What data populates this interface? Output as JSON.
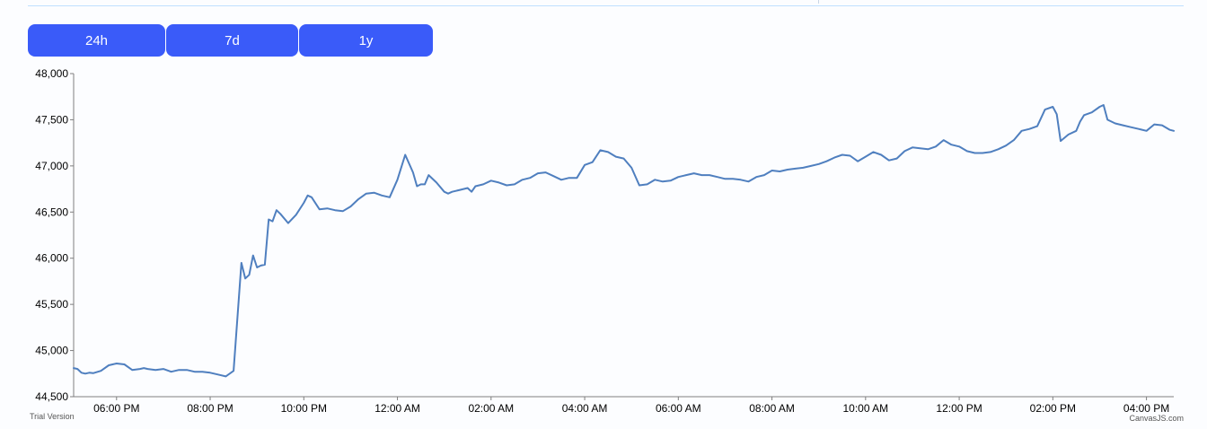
{
  "range_buttons": [
    {
      "label": "24h"
    },
    {
      "label": "7d"
    },
    {
      "label": "1y"
    }
  ],
  "footer": {
    "trial": "Trial Version",
    "brand": "CanvasJS.com"
  },
  "colors": {
    "line": "#4f7fbf",
    "button": "#3a5bf9",
    "axis": "#7f7f7f"
  },
  "chart_data": {
    "type": "line",
    "title": "",
    "xlabel": "",
    "ylabel": "",
    "ylim": [
      44500,
      48000
    ],
    "yticks": [
      44500,
      45000,
      45500,
      46000,
      46500,
      47000,
      47500,
      48000
    ],
    "ytick_labels": [
      "44,500",
      "45,000",
      "45,500",
      "46,000",
      "46,500",
      "47,000",
      "47,500",
      "48,000"
    ],
    "xlim": [
      "17:05",
      "16:35"
    ],
    "xticks": [
      "18:00",
      "20:00",
      "22:00",
      "00:00",
      "02:00",
      "04:00",
      "06:00",
      "08:00",
      "10:00",
      "12:00",
      "14:00",
      "16:00"
    ],
    "xtick_labels": [
      "06:00 PM",
      "08:00 PM",
      "10:00 PM",
      "12:00 AM",
      "02:00 AM",
      "04:00 AM",
      "06:00 AM",
      "08:00 AM",
      "10:00 AM",
      "12:00 PM",
      "02:00 PM",
      "04:00 PM"
    ],
    "grid": false,
    "series": [
      {
        "x": [
          "17:05",
          "17:10",
          "17:15",
          "17:20",
          "17:25",
          "17:30",
          "17:40",
          "17:50",
          "17:55",
          "18:00",
          "18:10",
          "18:20",
          "18:30",
          "18:35",
          "18:40",
          "18:50",
          "19:00",
          "19:10",
          "19:20",
          "19:30",
          "19:40",
          "19:50",
          "20:00",
          "20:10",
          "20:20",
          "20:30",
          "20:40",
          "20:45",
          "20:50",
          "20:55",
          "21:00",
          "21:05",
          "21:10",
          "21:15",
          "21:20",
          "21:25",
          "21:30",
          "21:40",
          "21:50",
          "22:00",
          "22:05",
          "22:10",
          "22:20",
          "22:30",
          "22:40",
          "22:50",
          "23:00",
          "23:10",
          "23:20",
          "23:30",
          "23:40",
          "23:50",
          "00:00",
          "00:10",
          "00:20",
          "00:25",
          "00:30",
          "00:35",
          "00:40",
          "00:50",
          "01:00",
          "01:05",
          "01:10",
          "01:20",
          "01:30",
          "01:35",
          "01:40",
          "01:50",
          "02:00",
          "02:10",
          "02:20",
          "02:30",
          "02:40",
          "02:50",
          "03:00",
          "03:10",
          "03:20",
          "03:30",
          "03:40",
          "03:50",
          "04:00",
          "04:10",
          "04:20",
          "04:30",
          "04:40",
          "04:50",
          "05:00",
          "05:10",
          "05:20",
          "05:30",
          "05:40",
          "05:50",
          "06:00",
          "06:10",
          "06:20",
          "06:30",
          "06:40",
          "06:50",
          "07:00",
          "07:10",
          "07:20",
          "07:30",
          "07:40",
          "07:50",
          "08:00",
          "08:10",
          "08:20",
          "08:30",
          "08:40",
          "08:50",
          "09:00",
          "09:10",
          "09:20",
          "09:30",
          "09:40",
          "09:50",
          "10:00",
          "10:10",
          "10:20",
          "10:30",
          "10:40",
          "10:50",
          "11:00",
          "11:10",
          "11:20",
          "11:30",
          "11:40",
          "11:50",
          "12:00",
          "12:10",
          "12:20",
          "12:30",
          "12:40",
          "12:50",
          "13:00",
          "13:10",
          "13:20",
          "13:30",
          "13:40",
          "13:50",
          "14:00",
          "14:05",
          "14:10",
          "14:20",
          "14:30",
          "14:35",
          "14:40",
          "14:50",
          "15:00",
          "15:05",
          "15:10",
          "15:20",
          "15:30",
          "15:40",
          "15:50",
          "16:00",
          "16:10",
          "16:20",
          "16:30",
          "16:35"
        ],
        "values": [
          44810,
          44800,
          44760,
          44750,
          44760,
          44755,
          44780,
          44840,
          44850,
          44860,
          44850,
          44790,
          44800,
          44810,
          44800,
          44790,
          44800,
          44770,
          44790,
          44790,
          44770,
          44770,
          44760,
          44740,
          44720,
          44780,
          45950,
          45780,
          45820,
          46030,
          45900,
          45920,
          45930,
          46420,
          46400,
          46520,
          46480,
          46380,
          46470,
          46600,
          46680,
          46660,
          46530,
          46540,
          46520,
          46510,
          46560,
          46640,
          46700,
          46710,
          46680,
          46660,
          46850,
          47120,
          46930,
          46780,
          46800,
          46800,
          46900,
          46820,
          46720,
          46700,
          46720,
          46740,
          46760,
          46720,
          46780,
          46800,
          46840,
          46820,
          46790,
          46800,
          46850,
          46870,
          46920,
          46930,
          46890,
          46850,
          46870,
          46870,
          47010,
          47040,
          47170,
          47150,
          47100,
          47080,
          46980,
          46790,
          46800,
          46850,
          46830,
          46840,
          46880,
          46900,
          46920,
          46900,
          46900,
          46880,
          46860,
          46860,
          46850,
          46830,
          46880,
          46900,
          46950,
          46940,
          46960,
          46970,
          46980,
          47000,
          47020,
          47050,
          47090,
          47120,
          47110,
          47050,
          47100,
          47150,
          47120,
          47060,
          47080,
          47160,
          47200,
          47190,
          47180,
          47210,
          47280,
          47230,
          47210,
          47160,
          47140,
          47140,
          47150,
          47180,
          47220,
          47280,
          47380,
          47400,
          47430,
          47610,
          47640,
          47560,
          47270,
          47340,
          47380,
          47480,
          47550,
          47580,
          47640,
          47660,
          47500,
          47460,
          47440,
          47420,
          47400,
          47380,
          47450,
          47440,
          47390,
          47380
        ]
      }
    ]
  }
}
